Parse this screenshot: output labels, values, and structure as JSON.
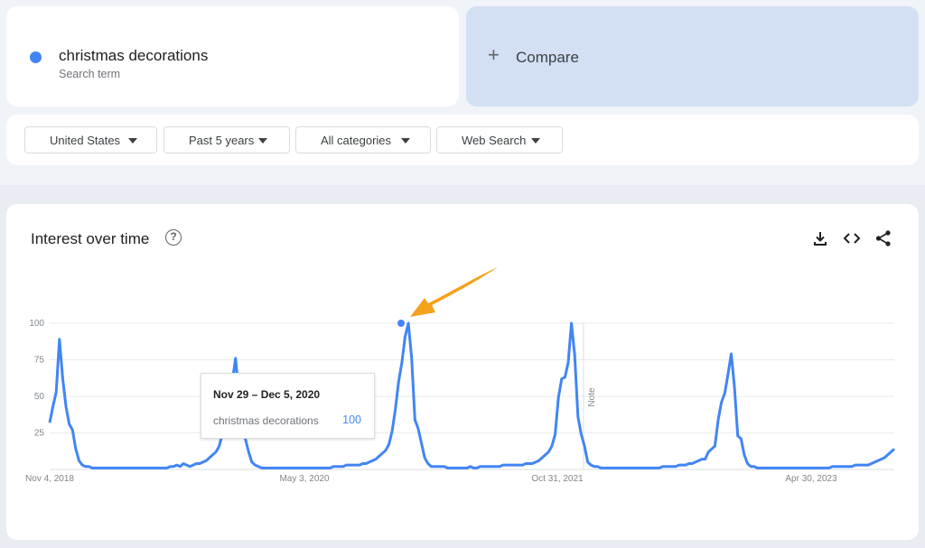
{
  "search": {
    "term": "christmas decorations",
    "subtitle": "Search term",
    "color": "#4285f4",
    "compare_label": "Compare"
  },
  "filters": [
    {
      "label": "United States"
    },
    {
      "label": "Past 5 years"
    },
    {
      "label": "All categories"
    },
    {
      "label": "Web Search"
    }
  ],
  "panel": {
    "title": "Interest over time",
    "icons": [
      "help-icon",
      "download-icon",
      "embed-code-icon",
      "share-icon"
    ]
  },
  "chart_data": {
    "type": "line",
    "title": "Interest over time",
    "x_tick_labels": [
      "Nov 4, 2018",
      "May 3, 2020",
      "Oct 31, 2021",
      "Apr 30, 2023"
    ],
    "y_ticks": [
      25,
      50,
      75,
      100
    ],
    "ylim": [
      0,
      100
    ],
    "grid": true,
    "note_label": "Note",
    "series": [
      {
        "name": "christmas decorations",
        "color": "#4285f4",
        "values": [
          32,
          43,
          53,
          89,
          62,
          43,
          31,
          27,
          14,
          6,
          3,
          2,
          2,
          1,
          1,
          1,
          1,
          1,
          1,
          1,
          1,
          1,
          1,
          1,
          1,
          1,
          1,
          1,
          1,
          1,
          1,
          1,
          1,
          1,
          1,
          1,
          1,
          2,
          2,
          3,
          2,
          4,
          3,
          2,
          3,
          4,
          4,
          5,
          6,
          8,
          10,
          12,
          16,
          25,
          35,
          45,
          60,
          76,
          52,
          34,
          21,
          12,
          5,
          3,
          2,
          1,
          1,
          1,
          1,
          1,
          1,
          1,
          1,
          1,
          1,
          1,
          1,
          1,
          1,
          1,
          1,
          1,
          1,
          1,
          1,
          1,
          1,
          2,
          2,
          2,
          2,
          3,
          3,
          3,
          3,
          3,
          4,
          4,
          5,
          6,
          7,
          9,
          11,
          13,
          17,
          26,
          41,
          60,
          73,
          91,
          100,
          76,
          34,
          28,
          18,
          8,
          4,
          2,
          2,
          2,
          2,
          2,
          1,
          1,
          1,
          1,
          1,
          1,
          1,
          2,
          1,
          1,
          2,
          2,
          2,
          2,
          2,
          2,
          2,
          3,
          3,
          3,
          3,
          3,
          3,
          3,
          4,
          4,
          4,
          5,
          6,
          8,
          10,
          12,
          16,
          24,
          49,
          62,
          63,
          73,
          100,
          78,
          36,
          24,
          16,
          5,
          3,
          2,
          2,
          1,
          1,
          1,
          1,
          1,
          1,
          1,
          1,
          1,
          1,
          1,
          1,
          1,
          1,
          1,
          1,
          1,
          1,
          1,
          2,
          2,
          2,
          2,
          2,
          3,
          3,
          3,
          4,
          4,
          5,
          6,
          7,
          7,
          12,
          14,
          16,
          34,
          46,
          52,
          65,
          79,
          56,
          23,
          21,
          10,
          4,
          2,
          2,
          1,
          1,
          1,
          1,
          1,
          1,
          1,
          1,
          1,
          1,
          1,
          1,
          1,
          1,
          1,
          1,
          1,
          1,
          1,
          1,
          1,
          1,
          1,
          2,
          2,
          2,
          2,
          2,
          2,
          2,
          3,
          3,
          3,
          3,
          3,
          4,
          5,
          6,
          7,
          8,
          10,
          12,
          14
        ]
      }
    ]
  },
  "tooltip": {
    "date": "Nov 29 – Dec 5, 2020",
    "term": "christmas decorations",
    "value": "100"
  }
}
